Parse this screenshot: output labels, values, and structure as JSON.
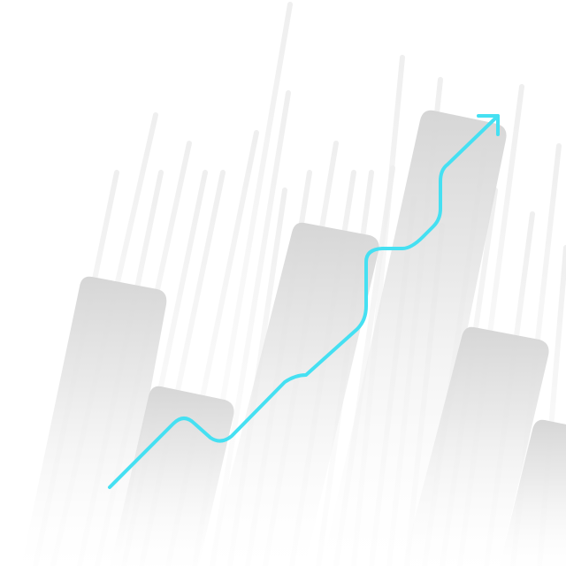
{
  "illustration": {
    "subject": "growth-chart-illustration",
    "colors": {
      "background": "#ffffff",
      "bar_top": "#d9d9d9",
      "bar_fade": "#ffffff",
      "streak": "#e9e9e9",
      "trend_line": "#45e0f2"
    },
    "bar_count": 6,
    "trend_direction": "up"
  }
}
